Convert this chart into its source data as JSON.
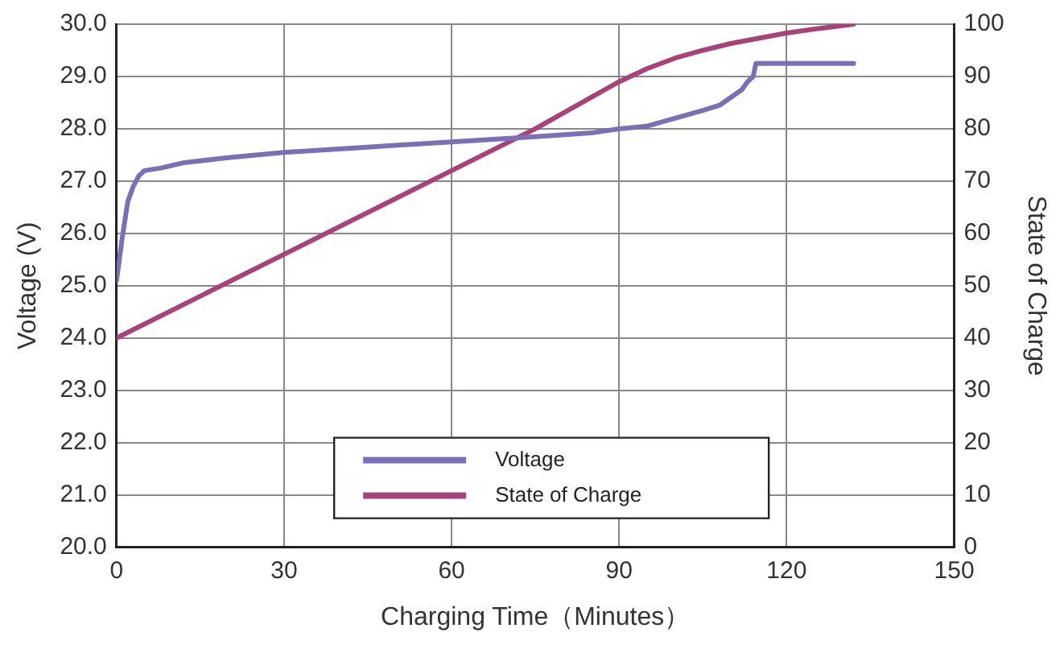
{
  "chart_data": {
    "type": "line",
    "xlabel": "Charging Time（Minutes）",
    "ylabel": "Voltage (V)",
    "y2label": "State of Charge",
    "xlim": [
      0,
      150
    ],
    "xticks": [
      0,
      30,
      60,
      90,
      120,
      150
    ],
    "ylim": [
      20,
      30
    ],
    "yticks": [
      {
        "value": 20,
        "label": "20.0"
      },
      {
        "value": 21,
        "label": "21.0"
      },
      {
        "value": 22,
        "label": "22.0"
      },
      {
        "value": 23,
        "label": "23.0"
      },
      {
        "value": 24,
        "label": "24.0"
      },
      {
        "value": 25,
        "label": "25.0"
      },
      {
        "value": 26,
        "label": "26.0"
      },
      {
        "value": 27,
        "label": "27.0"
      },
      {
        "value": 28,
        "label": "28.0"
      },
      {
        "value": 29,
        "label": "29.0"
      },
      {
        "value": 30,
        "label": "30.0"
      }
    ],
    "y2lim": [
      0,
      100
    ],
    "y2ticks": [
      0,
      10,
      20,
      30,
      40,
      50,
      60,
      70,
      80,
      90,
      100
    ],
    "grid": true,
    "legend": "bottom",
    "marker": "none",
    "line_style": "solid",
    "series": [
      {
        "name": "Voltage",
        "color": "#7b6fb5",
        "x": [
          0,
          1,
          2,
          3,
          4,
          5,
          8,
          12,
          20,
          30,
          45,
          60,
          75,
          85,
          90,
          95,
          100,
          105,
          108,
          110,
          112,
          113,
          114,
          114.5,
          115,
          120,
          125,
          132
        ],
        "values": [
          25.1,
          25.9,
          26.6,
          26.9,
          27.1,
          27.2,
          27.25,
          27.35,
          27.45,
          27.55,
          27.65,
          27.75,
          27.85,
          27.92,
          28.0,
          28.05,
          28.2,
          28.35,
          28.45,
          28.6,
          28.75,
          28.9,
          29.0,
          29.25,
          29.25,
          29.25,
          29.25,
          29.25
        ]
      },
      {
        "name": "State of Charge",
        "color": "#a8437a",
        "axis": "y2",
        "x": [
          0,
          30,
          60,
          75,
          85,
          90,
          95,
          100,
          105,
          110,
          115,
          120,
          126,
          132
        ],
        "values": [
          40,
          56,
          72,
          80,
          86,
          89,
          91.5,
          93.5,
          95,
          96.3,
          97.3,
          98.3,
          99.2,
          100
        ]
      }
    ]
  }
}
